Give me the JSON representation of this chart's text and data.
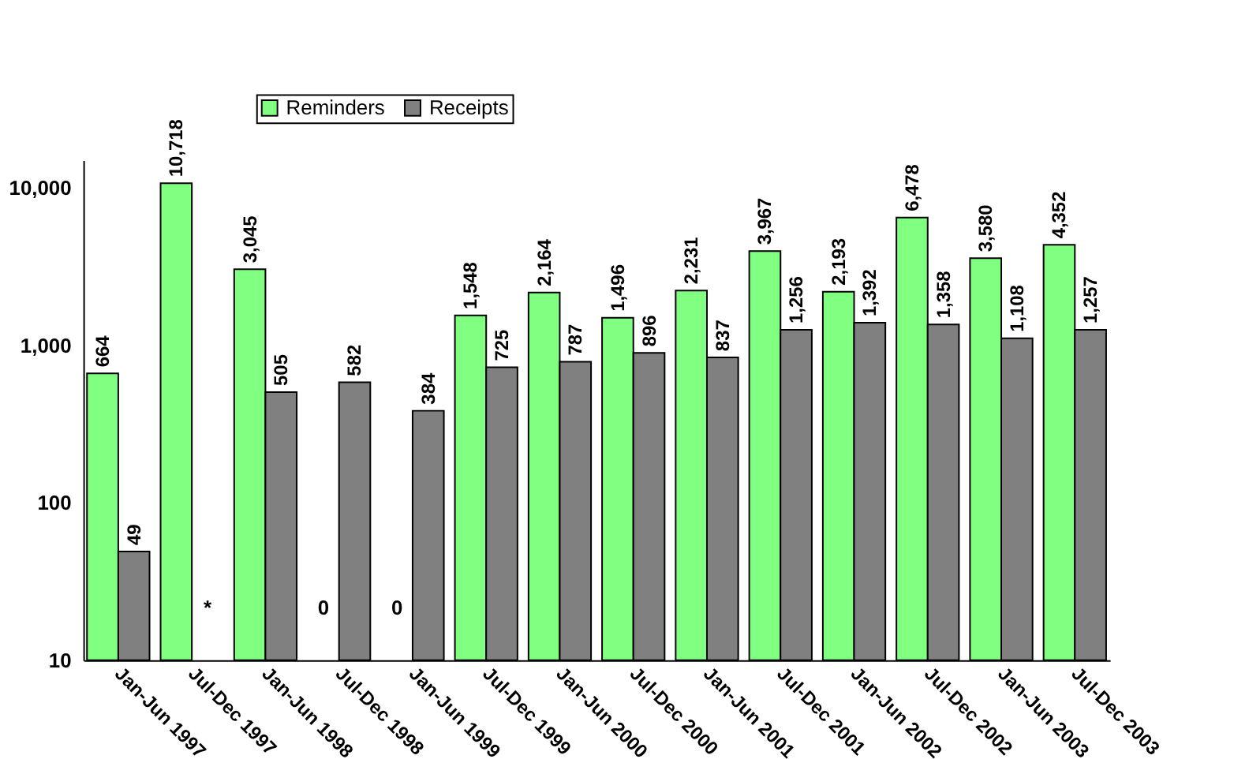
{
  "chart_data": {
    "type": "bar",
    "log": true,
    "categories": [
      "Jan-Jun 1997",
      "Jul-Dec 1997",
      "Jan-Jun 1998",
      "Jul-Dec 1998",
      "Jan-Jun 1999",
      "Jul-Dec 1999",
      "Jan-Jun 2000",
      "Jul-Dec 2000",
      "Jan-Jun 2001",
      "Jul-Dec 2001",
      "Jan-Jun 2002",
      "Jul-Dec 2002",
      "Jan-Jun 2003",
      "Jul-Dec 2003"
    ],
    "series": [
      {
        "name": "Reminders",
        "color": "#80ff80",
        "values": [
          664,
          10718,
          3045,
          null,
          null,
          1548,
          2164,
          1496,
          2231,
          3967,
          2193,
          6478,
          3580,
          4352
        ],
        "value_labels": [
          "664",
          "10,718",
          "3,045",
          "0",
          "0",
          "1,548",
          "2,164",
          "1,496",
          "2,231",
          "3,967",
          "2,193",
          "6,478",
          "3,580",
          "4,352"
        ]
      },
      {
        "name": "Receipts",
        "color": "#808080",
        "values": [
          49,
          null,
          505,
          582,
          384,
          725,
          787,
          896,
          837,
          1256,
          1392,
          1358,
          1108,
          1257
        ],
        "value_labels": [
          "49",
          "*",
          "505",
          "582",
          "384",
          "725",
          "787",
          "896",
          "837",
          "1,256",
          "1,392",
          "1,358",
          "1,108",
          "1,257"
        ]
      }
    ],
    "ylim": [
      10,
      15000
    ],
    "yticks": [
      {
        "value": 10,
        "label": "10"
      },
      {
        "value": 100,
        "label": "100"
      },
      {
        "value": 1000,
        "label": "1,000"
      },
      {
        "value": 10000,
        "label": "10,000"
      }
    ],
    "grid": false,
    "legend": "top"
  }
}
